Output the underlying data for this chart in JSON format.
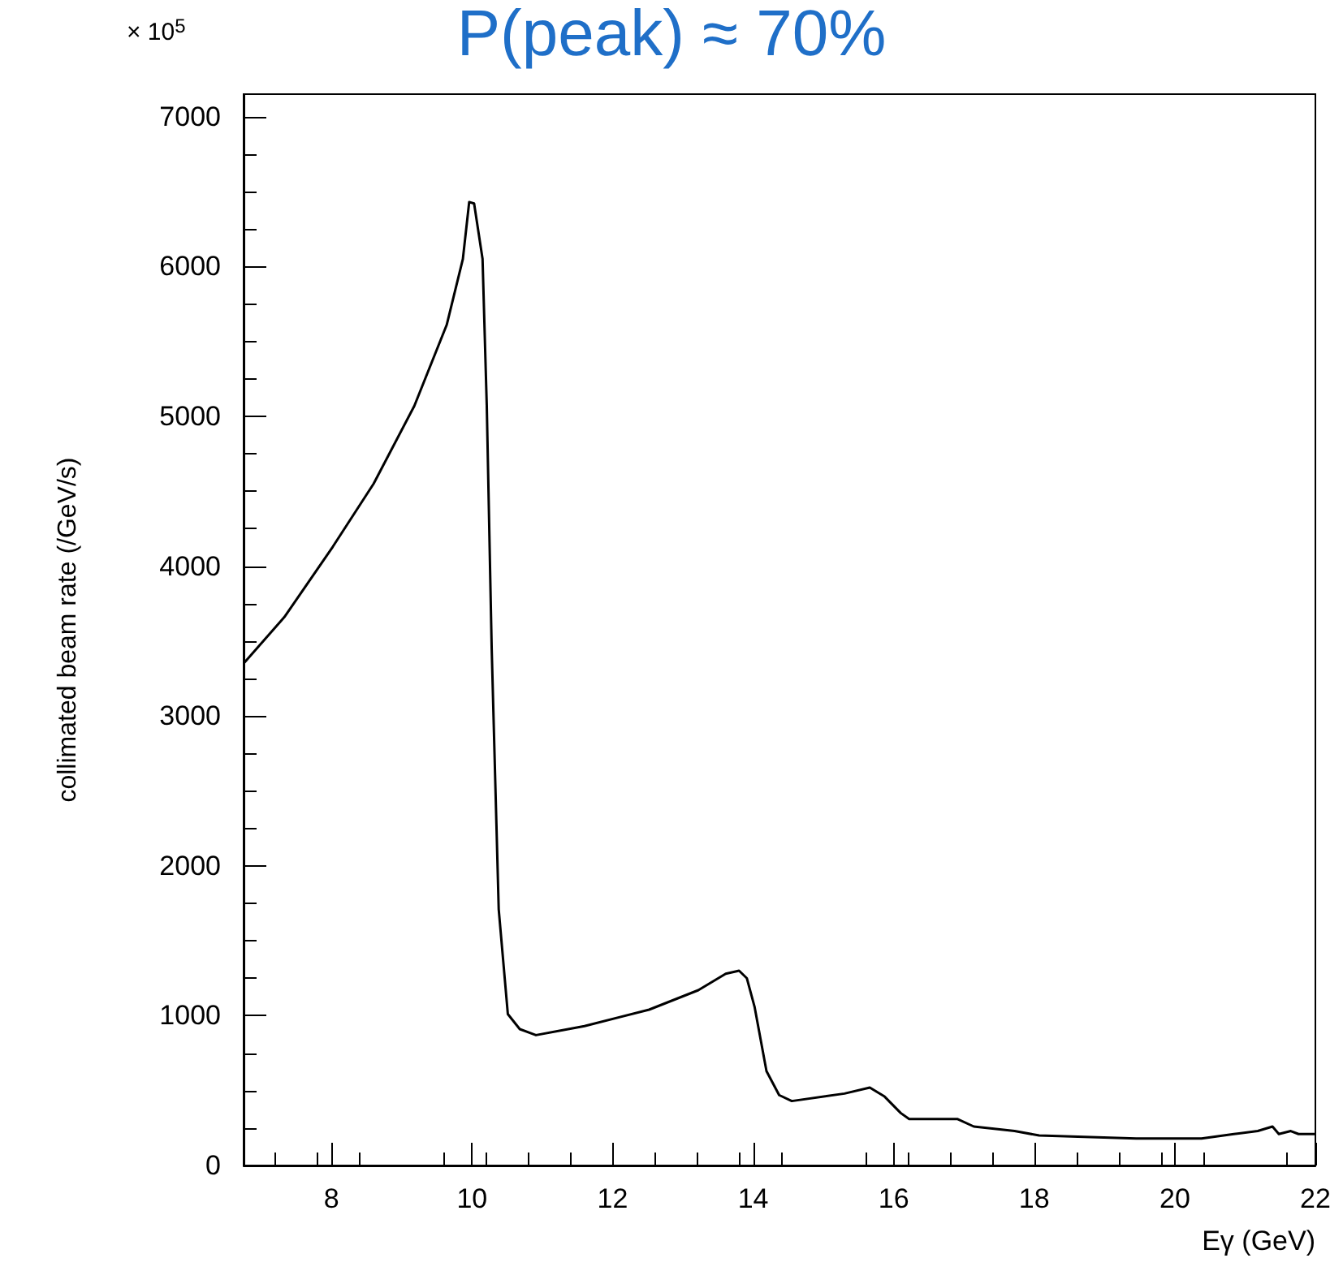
{
  "chart_data": {
    "type": "line",
    "title": "P(peak) ≈ 70%",
    "xlabel": "Eγ (GeV)",
    "ylabel": "collimated beam rate (/GeV/s)",
    "annotations": [
      "× 10$^{5}$"
    ],
    "x": [
      6.75,
      7.33,
      8.02,
      8.6,
      9.18,
      9.64,
      9.87,
      9.96,
      10.03,
      10.15,
      10.21,
      10.28,
      10.38,
      10.51,
      10.68,
      10.91,
      11.6,
      12.52,
      13.22,
      13.61,
      13.8,
      13.91,
      14.02,
      14.19,
      14.37,
      14.55,
      15.3,
      15.66,
      15.87,
      16.1,
      16.22,
      16.91,
      17.14,
      17.72,
      18.07,
      19.45,
      20.38,
      20.84,
      21.18,
      21.39,
      21.48,
      21.65,
      21.76,
      22
    ],
    "series": [
      {
        "color": "#000000",
        "values": [
          3350,
          3660,
          4130,
          4550,
          5070,
          5610,
          6050,
          6430,
          6420,
          6050,
          5070,
          3450,
          1710,
          1010,
          910,
          870,
          930,
          1040,
          1170,
          1280,
          1300,
          1250,
          1060,
          630,
          470,
          430,
          480,
          520,
          460,
          350,
          310,
          310,
          260,
          230,
          200,
          180,
          180,
          210,
          230,
          260,
          210,
          230,
          210,
          210
        ]
      }
    ],
    "xlim": [
      6.75,
      22
    ],
    "xticks": [
      8,
      10,
      12,
      14,
      16,
      18,
      20,
      22
    ],
    "ylim": [
      0,
      7150
    ],
    "yticks": [
      0,
      1000,
      2000,
      3000,
      4000,
      5000,
      6000,
      7000
    ]
  }
}
